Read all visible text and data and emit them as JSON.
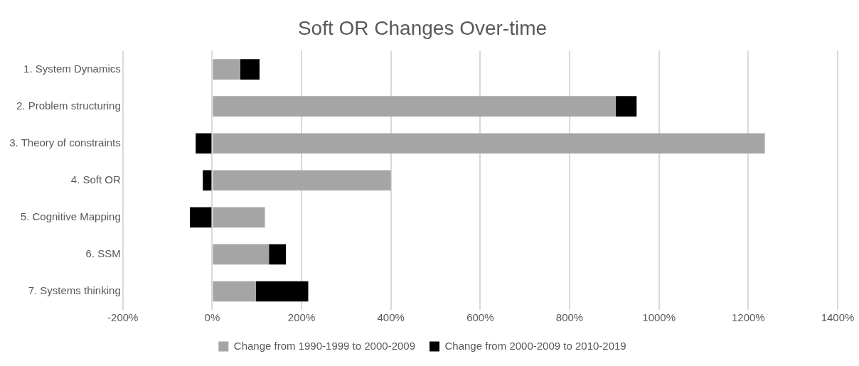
{
  "chart_data": {
    "type": "bar",
    "orientation": "horizontal",
    "stacked": true,
    "title": "Soft OR Changes Over-time",
    "categories": [
      "1. System Dynamics",
      "2. Problem structuring",
      "3. Theory of constraints",
      "4. Soft OR",
      "5. Cognitive Mapping",
      "6. SSM",
      "7. Systems thinking"
    ],
    "series": [
      {
        "name": "Change from 1990-1999 to 2000-2009",
        "color": "#a5a5a5",
        "values": [
          63,
          903,
          1237,
          400,
          118,
          127,
          98
        ]
      },
      {
        "name": "Change from 2000-2009 to 2010-2019",
        "color": "#000000",
        "values": [
          43,
          47,
          -37,
          -21,
          -50,
          38,
          117
        ]
      }
    ],
    "xlim": [
      -200,
      1400
    ],
    "xticks": [
      {
        "value": -200,
        "label": "-200%"
      },
      {
        "value": 0,
        "label": "0%"
      },
      {
        "value": 200,
        "label": "200%"
      },
      {
        "value": 400,
        "label": "400%"
      },
      {
        "value": 600,
        "label": "600%"
      },
      {
        "value": 800,
        "label": "800%"
      },
      {
        "value": 1000,
        "label": "1000%"
      },
      {
        "value": 1200,
        "label": "1200%"
      },
      {
        "value": 1400,
        "label": "1400%"
      }
    ],
    "grid": "x",
    "legend": "bottom"
  }
}
